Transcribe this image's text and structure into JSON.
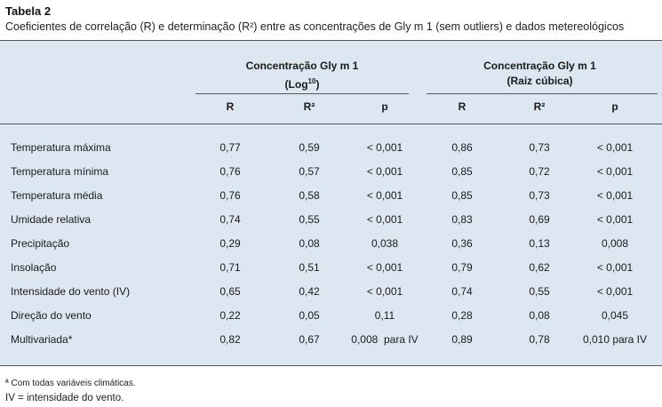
{
  "title": "Tabela 2",
  "caption": "Coeficientes de correlação (R) e determinação (R²) entre as concentrações de Gly m 1 (sem outliers) e dados metereológicos",
  "groups": {
    "log": {
      "line1": "Concentração Gly m 1",
      "line2_pre": "(Log",
      "line2_sup": "10",
      "line2_post": ")"
    },
    "cubic": {
      "line1": "Concentração Gly m 1",
      "line2": "(Raiz cúbica)"
    }
  },
  "columns": [
    "R",
    "R²",
    "p",
    "R",
    "R²",
    "p"
  ],
  "rows": [
    {
      "label": "Temperatura máxima",
      "values": [
        "0,77",
        "0,59",
        "< 0,001",
        "0,86",
        "0,73",
        "< 0,001"
      ]
    },
    {
      "label": "Temperatura mínima",
      "values": [
        "0,76",
        "0,57",
        "< 0,001",
        "0,85",
        "0,72",
        "< 0,001"
      ]
    },
    {
      "label": "Temperatura média",
      "values": [
        "0,76",
        "0,58",
        "< 0,001",
        "0,85",
        "0,73",
        "< 0,001"
      ]
    },
    {
      "label": "Umidade relativa",
      "values": [
        "0,74",
        "0,55",
        "< 0,001",
        "0,83",
        "0,69",
        "< 0,001"
      ]
    },
    {
      "label": "Precipitação",
      "values": [
        "0,29",
        "0,08",
        "0,038",
        "0,36",
        "0,13",
        "0,008"
      ]
    },
    {
      "label": "Insolação",
      "values": [
        "0,71",
        "0,51",
        "< 0,001",
        "0,79",
        "0,62",
        "< 0,001"
      ]
    },
    {
      "label": "Intensidade do vento (IV)",
      "values": [
        "0,65",
        "0,42",
        "< 0,001",
        "0,74",
        "0,55",
        "< 0,001"
      ]
    },
    {
      "label": "Direção do vento",
      "values": [
        "0,22",
        "0,05",
        "0,11",
        "0,28",
        "0,08",
        "0,045"
      ]
    },
    {
      "label": "Multivariada*",
      "values": [
        "0,82",
        "0,67",
        "0,008  para IV",
        "0,89",
        "0,78",
        "0,010 para IV"
      ]
    }
  ],
  "footnotes": {
    "note1": "ª Com todas variáveis climáticas.",
    "note2": "IV = intensidade do vento."
  }
}
